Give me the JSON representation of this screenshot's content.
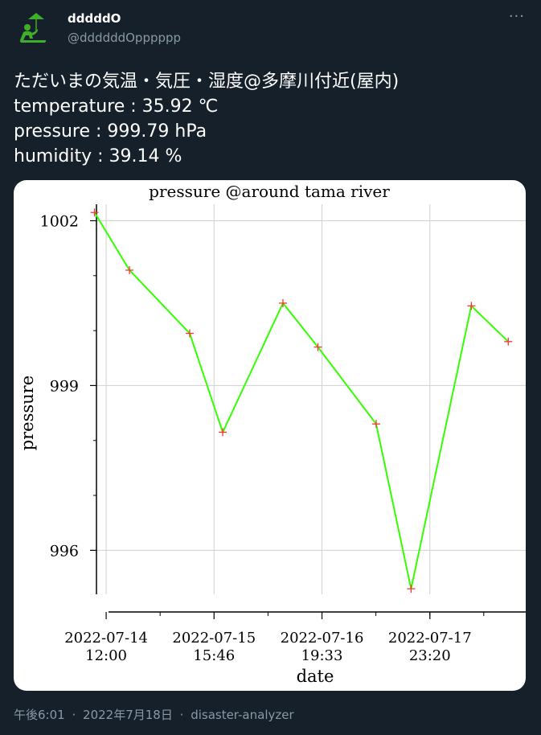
{
  "user": {
    "name": "dddddO",
    "handle": "@ddddddOpppppp",
    "avatar_icon": "person-umbrella-icon",
    "avatar_color": "#3fae2a"
  },
  "more_label": "···",
  "tweet": {
    "line1": "ただいまの気温・気圧・湿度@多摩川付近(屋内)",
    "line2": "temperature :  35.92 ℃",
    "line3": "pressure :  999.79 hPa",
    "line4": "humidity :  39.14 %"
  },
  "footer": {
    "time": "午後6:01",
    "date": "2022年7月18日",
    "source": "disaster-analyzer",
    "separator": "·"
  },
  "chart_data": {
    "type": "line",
    "title": "pressure @around tama river",
    "xlabel": "date",
    "ylabel": "pressure",
    "line_color": "#33ff00",
    "marker_color": "#ff3333",
    "grid": true,
    "ylim": [
      995.2,
      1002.3
    ],
    "yticks": [
      996,
      999,
      1002
    ],
    "xlim_hours": [
      -2.5,
      108
    ],
    "xticks": [
      {
        "h": 0,
        "date": "2022-07-14",
        "time": "12:00"
      },
      {
        "h": 27.77,
        "date": "2022-07-15",
        "time": "15:46"
      },
      {
        "h": 55.55,
        "date": "2022-07-16",
        "time": "19:33"
      },
      {
        "h": 83.33,
        "date": "2022-07-17",
        "time": "23:20"
      }
    ],
    "points": [
      {
        "h": -3.0,
        "y": 1002.15
      },
      {
        "h": 6.0,
        "y": 1001.1
      },
      {
        "h": 21.5,
        "y": 999.95
      },
      {
        "h": 30.0,
        "y": 998.15
      },
      {
        "h": 45.5,
        "y": 1000.5
      },
      {
        "h": 54.5,
        "y": 999.7
      },
      {
        "h": 69.5,
        "y": 998.3
      },
      {
        "h": 78.5,
        "y": 995.3
      },
      {
        "h": 94.0,
        "y": 1000.45
      },
      {
        "h": 103.5,
        "y": 999.8
      }
    ]
  }
}
